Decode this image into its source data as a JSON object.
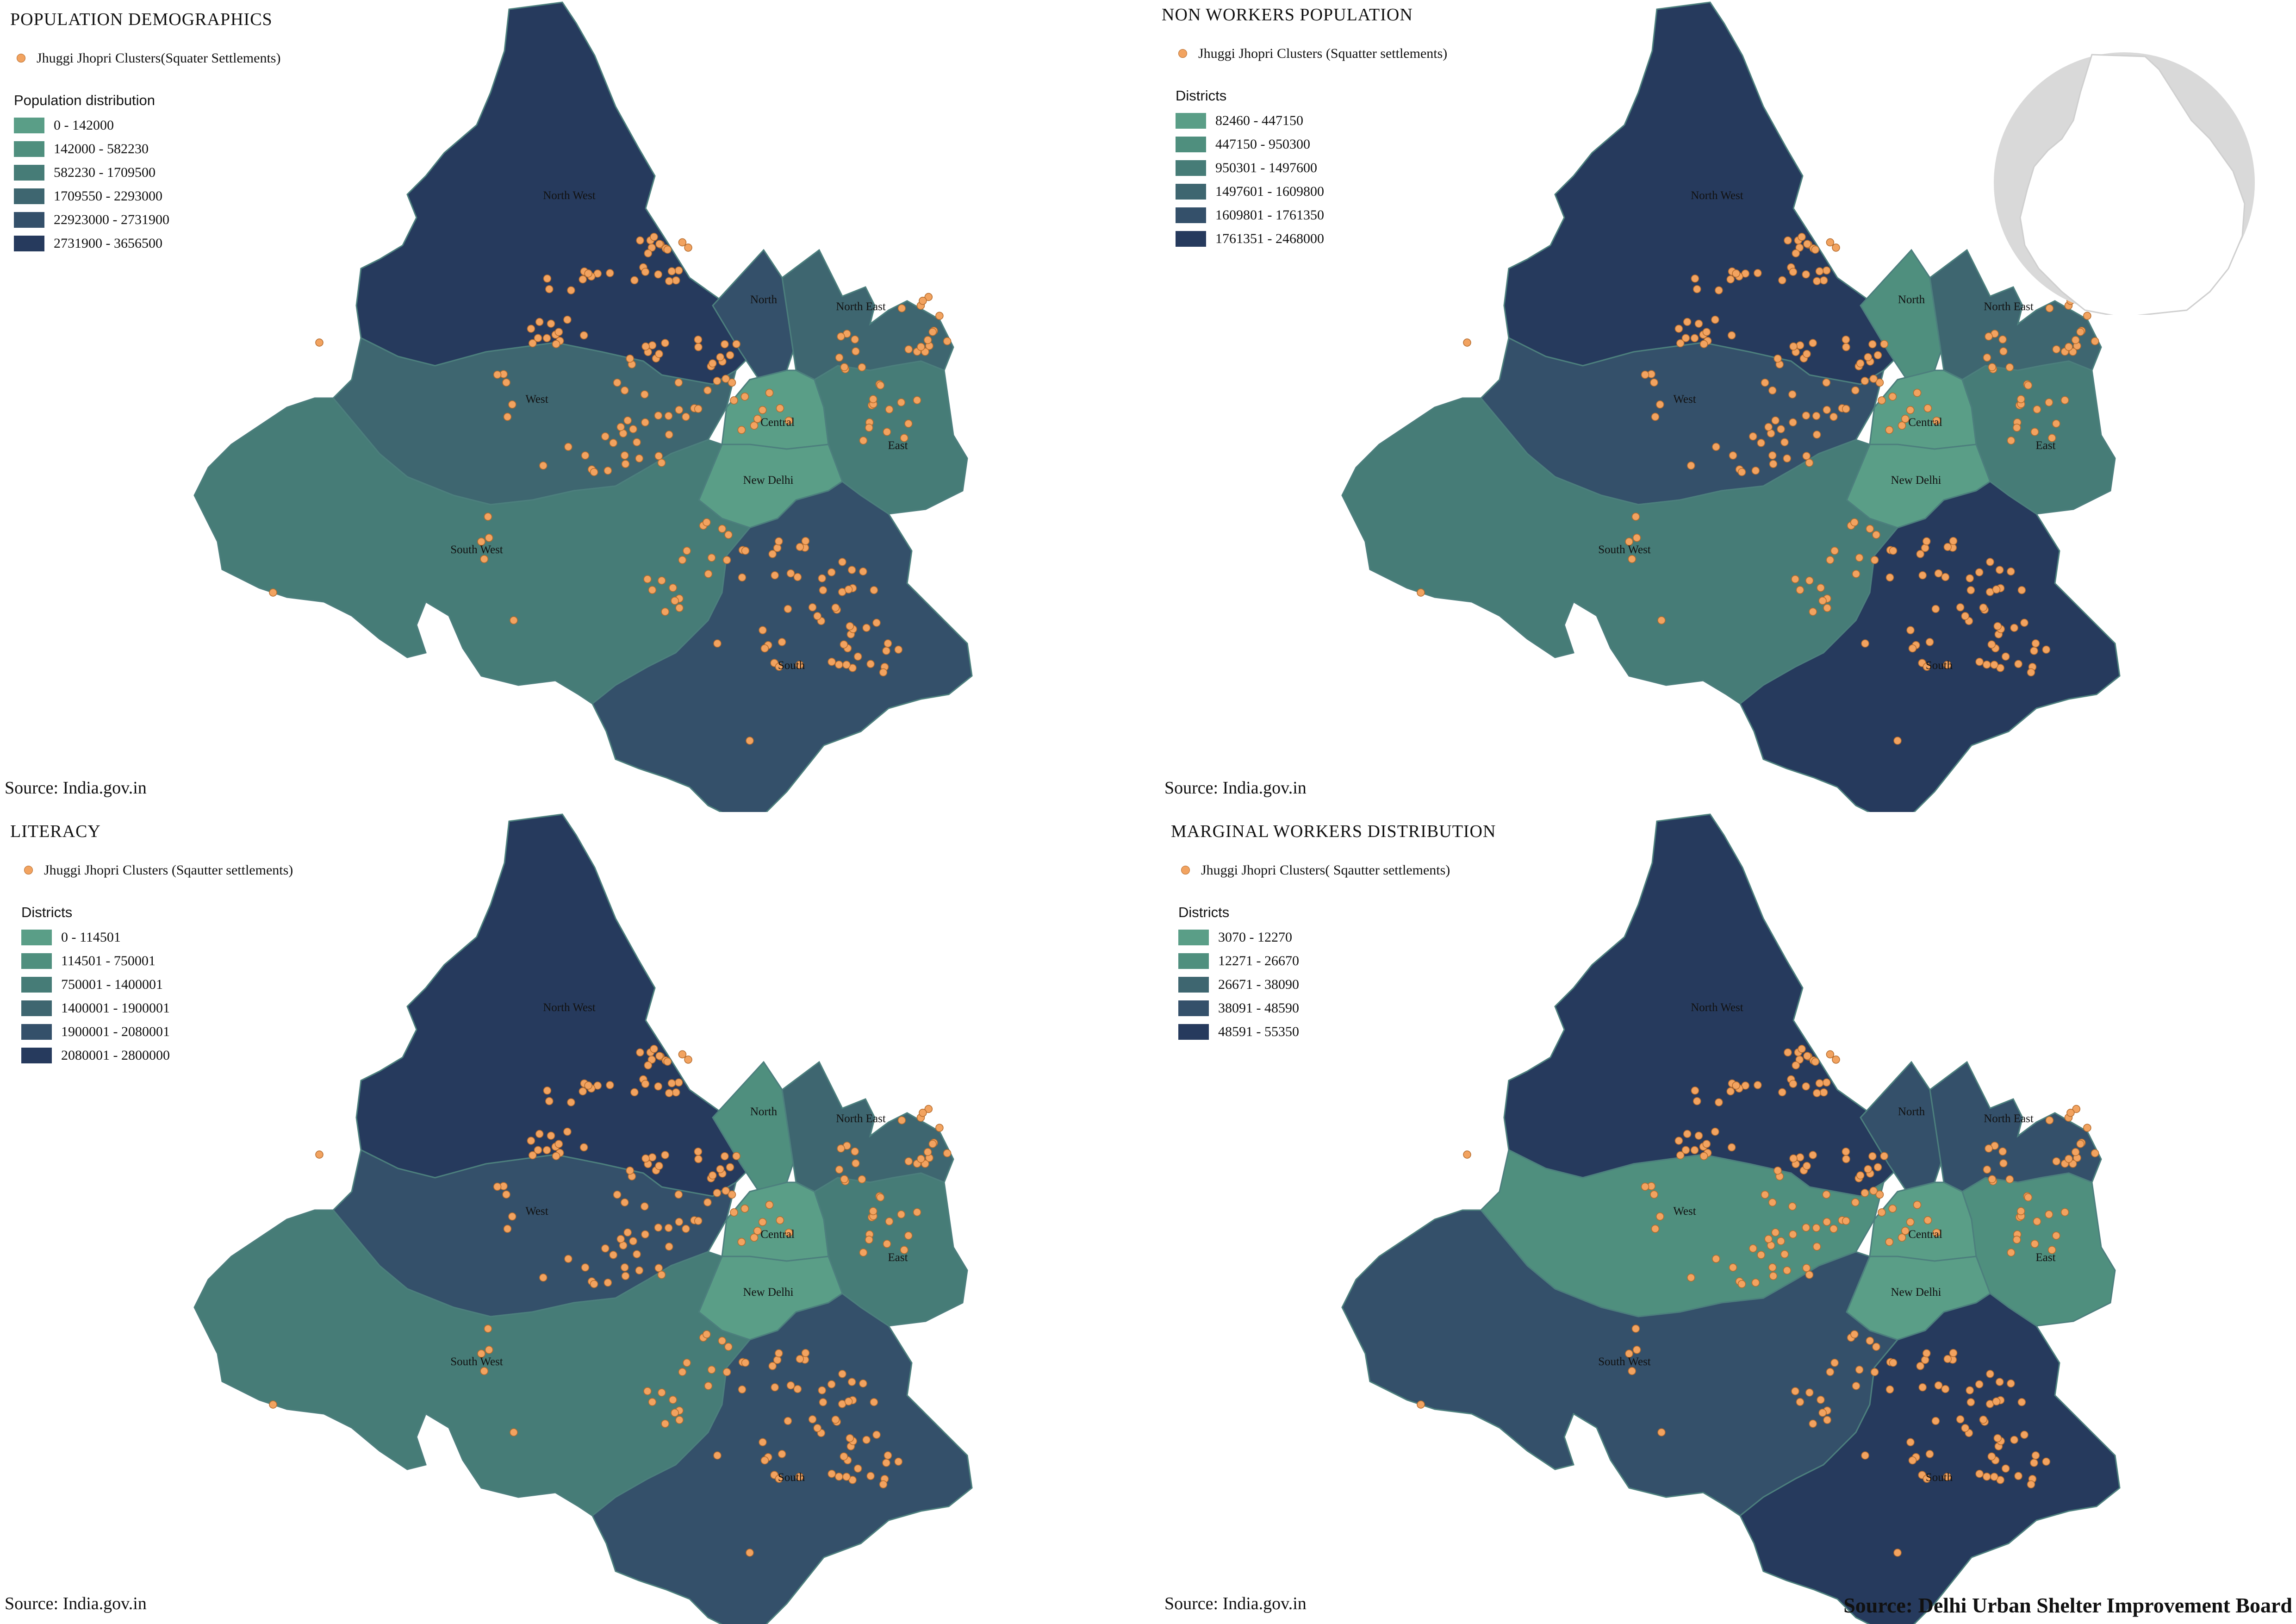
{
  "source_label": "Source: India.gov.in",
  "credit": "Source: Delhi Urban Shelter Improvement Board",
  "point_color": "#f2a360",
  "districts": [
    "North West",
    "North",
    "North East",
    "West",
    "Central",
    "East",
    "New Delhi",
    "South West",
    "South"
  ],
  "panels": [
    {
      "title": "POPULATION DEMOGRAPHICS",
      "point_legend": "Jhuggi Jhopri Clusters(Squater Settlements)",
      "legend_title": "Population distribution",
      "classes": [
        {
          "label": "0 - 142000",
          "color": "#5a9e87"
        },
        {
          "label": "142000 - 582230",
          "color": "#4f8f7e"
        },
        {
          "label": "582230 - 1709500",
          "color": "#467c77"
        },
        {
          "label": "1709550 - 2293000",
          "color": "#3e6670"
        },
        {
          "label": "22923000 - 2731900",
          "color": "#34506a"
        },
        {
          "label": "2731900 - 3656500",
          "color": "#263a5d"
        }
      ],
      "district_class": {
        "North West": 5,
        "North": 4,
        "North East": 3,
        "West": 3,
        "Central": 0,
        "East": 2,
        "New Delhi": 0,
        "South West": 2,
        "South": 4
      }
    },
    {
      "title": "NON WORKERS POPULATION",
      "point_legend": "Jhuggi Jhopri Clusters (Squatter settlements)",
      "legend_title": "Districts",
      "classes": [
        {
          "label": "82460 - 447150",
          "color": "#5a9e87"
        },
        {
          "label": "447150 - 950300",
          "color": "#4f8f7e"
        },
        {
          "label": "950301 - 1497600",
          "color": "#467c77"
        },
        {
          "label": "1497601 - 1609800",
          "color": "#3e6670"
        },
        {
          "label": "1609801 - 1761350",
          "color": "#34506a"
        },
        {
          "label": "1761351 - 2468000",
          "color": "#263a5d"
        }
      ],
      "district_class": {
        "North West": 5,
        "North": 1,
        "North East": 3,
        "West": 4,
        "Central": 0,
        "East": 2,
        "New Delhi": 0,
        "South West": 2,
        "South": 5
      }
    },
    {
      "title": "LITERACY",
      "point_legend": "Jhuggi Jhopri Clusters (Sqautter settlements)",
      "legend_title": "Districts",
      "classes": [
        {
          "label": "0 - 114501",
          "color": "#5a9e87"
        },
        {
          "label": "114501 - 750001",
          "color": "#4f8f7e"
        },
        {
          "label": "750001 - 1400001",
          "color": "#467c77"
        },
        {
          "label": "1400001 - 1900001",
          "color": "#3e6670"
        },
        {
          "label": "1900001 - 2080001",
          "color": "#34506a"
        },
        {
          "label": "2080001 - 2800000",
          "color": "#263a5d"
        }
      ],
      "district_class": {
        "North West": 5,
        "North": 1,
        "North East": 3,
        "West": 4,
        "Central": 0,
        "East": 2,
        "New Delhi": 0,
        "South West": 2,
        "South": 4
      }
    },
    {
      "title": "MARGINAL WORKERS DISTRIBUTION",
      "point_legend": "Jhuggi Jhopri Clusters( Sqautter settlements)",
      "legend_title": "Districts",
      "classes": [
        {
          "label": "3070 - 12270",
          "color": "#5a9e87"
        },
        {
          "label": "12271 - 26670",
          "color": "#4f8f7e"
        },
        {
          "label": "26671 - 38090",
          "color": "#3e6670"
        },
        {
          "label": "38091 - 48590",
          "color": "#34506a"
        },
        {
          "label": "48591 - 55350",
          "color": "#263a5d"
        }
      ],
      "district_class": {
        "North West": 4,
        "North": 3,
        "North East": 3,
        "West": 1,
        "Central": 0,
        "East": 1,
        "New Delhi": 0,
        "South West": 3,
        "South": 4
      }
    }
  ]
}
